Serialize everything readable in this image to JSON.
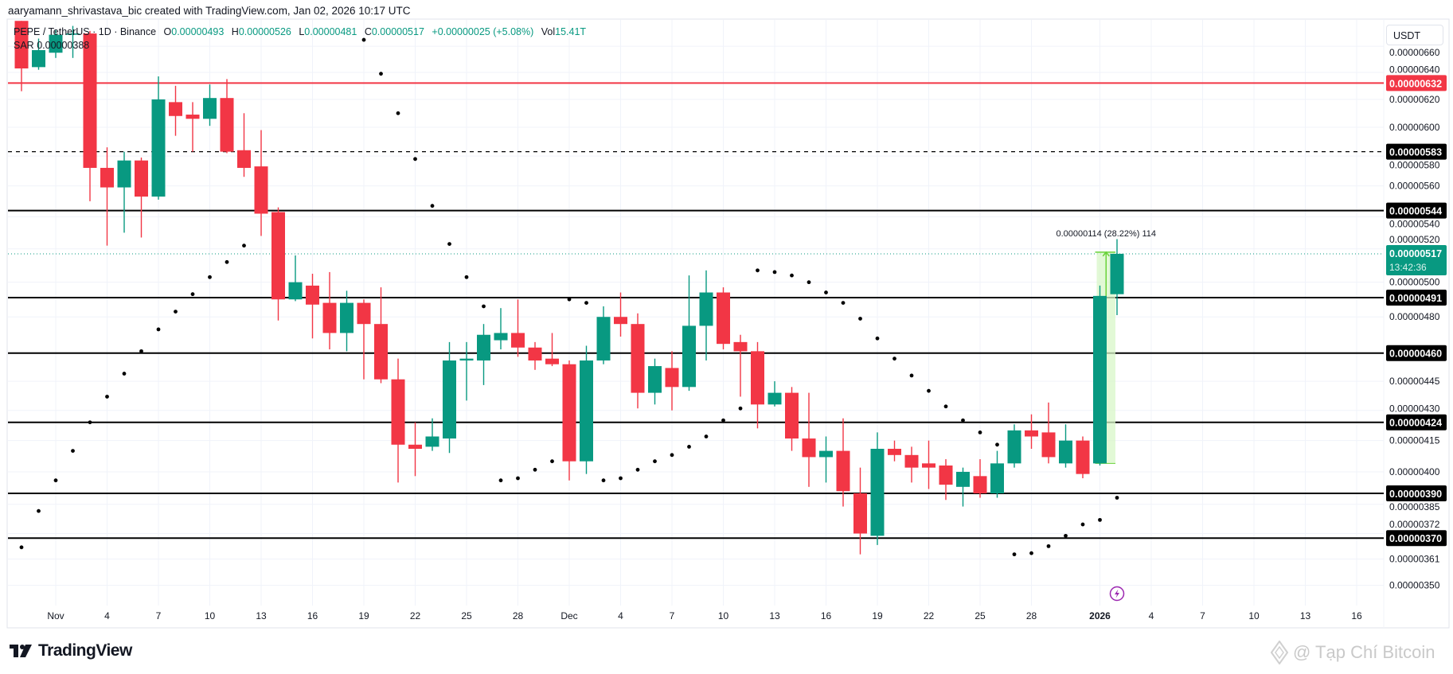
{
  "credit": "aaryamann_shrivastava_bic created with TradingView.com, Jan 02, 2026 10:17 UTC",
  "legend": {
    "symbol": "PEPE / TetherUS · 1D · Binance",
    "open_label": "O",
    "open": "0.00000493",
    "high_label": "H",
    "high": "0.00000526",
    "low_label": "L",
    "low": "0.00000481",
    "close_label": "C",
    "close": "0.00000517",
    "change": "+0.00000025 (+5.08%)",
    "volume_label": "Vol",
    "volume": "15.41T",
    "sar_label": "SAR",
    "sar_value": "0.00000388"
  },
  "currency": "USDT",
  "branding": {
    "logo": "TradingView",
    "watermark": "@ Tạp Chí Bitcoin"
  },
  "colors": {
    "up": "#089981",
    "down": "#f23645",
    "level": "#000000",
    "resistance": "#f23645",
    "sar": "#000000",
    "measure": "#6ad33a",
    "event": "#9c27b0"
  },
  "chart_data": {
    "type": "candlestick",
    "scale": "log",
    "ylim": [
      3.43e-06,
      6.85e-06
    ],
    "grid": true,
    "columns": [
      "date",
      "open",
      "high",
      "low",
      "close"
    ],
    "candles": [
      [
        "2025-10-30",
        6.8e-06,
        6.8e-06,
        6.26e-06,
        6.43e-06
      ],
      [
        "2025-10-31",
        6.44e-06,
        6.66e-06,
        6.42e-06,
        6.57e-06
      ],
      [
        "2025-11-01",
        6.55e-06,
        6.73e-06,
        6.51e-06,
        6.69e-06
      ],
      [
        "2025-11-02",
        6.69e-06,
        6.76e-06,
        6.51e-06,
        6.7e-06
      ],
      [
        "2025-11-03",
        6.7e-06,
        6.72e-06,
        5.5e-06,
        5.72e-06
      ],
      [
        "2025-11-04",
        5.72e-06,
        5.86e-06,
        5.22e-06,
        5.59e-06
      ],
      [
        "2025-11-05",
        5.59e-06,
        5.83e-06,
        5.3e-06,
        5.77e-06
      ],
      [
        "2025-11-06",
        5.77e-06,
        5.79e-06,
        5.27e-06,
        5.53e-06
      ],
      [
        "2025-11-07",
        5.53e-06,
        6.37e-06,
        5.51e-06,
        6.2e-06
      ],
      [
        "2025-11-08",
        6.18e-06,
        6.3e-06,
        5.94e-06,
        6.08e-06
      ],
      [
        "2025-11-09",
        6.09e-06,
        6.18e-06,
        5.83e-06,
        6.06e-06
      ],
      [
        "2025-11-10",
        6.06e-06,
        6.31e-06,
        6.01e-06,
        6.21e-06
      ],
      [
        "2025-11-11",
        6.21e-06,
        6.35e-06,
        5.82e-06,
        5.83e-06
      ],
      [
        "2025-11-12",
        5.84e-06,
        6.1e-06,
        5.66e-06,
        5.72e-06
      ],
      [
        "2025-11-13",
        5.73e-06,
        5.98e-06,
        5.28e-06,
        5.42e-06
      ],
      [
        "2025-11-14",
        5.43e-06,
        5.46e-06,
        4.78e-06,
        4.9e-06
      ],
      [
        "2025-11-15",
        4.9e-06,
        5.16e-06,
        4.89e-06,
        5e-06
      ],
      [
        "2025-11-16",
        4.98e-06,
        5.05e-06,
        4.68e-06,
        4.87e-06
      ],
      [
        "2025-11-17",
        4.88e-06,
        5.06e-06,
        4.62e-06,
        4.71e-06
      ],
      [
        "2025-11-18",
        4.71e-06,
        4.95e-06,
        4.61e-06,
        4.88e-06
      ],
      [
        "2025-11-19",
        4.88e-06,
        4.9e-06,
        4.46e-06,
        4.76e-06
      ],
      [
        "2025-11-20",
        4.76e-06,
        4.97e-06,
        4.44e-06,
        4.46e-06
      ],
      [
        "2025-11-21",
        4.46e-06,
        4.57e-06,
        3.95e-06,
        4.13e-06
      ],
      [
        "2025-11-22",
        4.13e-06,
        4.24e-06,
        3.98e-06,
        4.11e-06
      ],
      [
        "2025-11-23",
        4.12e-06,
        4.26e-06,
        4.1e-06,
        4.17e-06
      ],
      [
        "2025-11-24",
        4.16e-06,
        4.66e-06,
        4.09e-06,
        4.56e-06
      ],
      [
        "2025-11-25",
        4.56e-06,
        4.66e-06,
        4.35e-06,
        4.57e-06
      ],
      [
        "2025-11-26",
        4.56e-06,
        4.76e-06,
        4.43e-06,
        4.7e-06
      ],
      [
        "2025-11-27",
        4.67e-06,
        4.85e-06,
        4.62e-06,
        4.71e-06
      ],
      [
        "2025-11-28",
        4.71e-06,
        4.9e-06,
        4.58e-06,
        4.63e-06
      ],
      [
        "2025-11-29",
        4.63e-06,
        4.66e-06,
        4.51e-06,
        4.56e-06
      ],
      [
        "2025-11-30",
        4.57e-06,
        4.71e-06,
        4.53e-06,
        4.54e-06
      ],
      [
        "2025-12-01",
        4.54e-06,
        4.56e-06,
        3.96e-06,
        4.05e-06
      ],
      [
        "2025-12-02",
        4.05e-06,
        4.64e-06,
        3.99e-06,
        4.56e-06
      ],
      [
        "2025-12-03",
        4.56e-06,
        4.86e-06,
        4.54e-06,
        4.8e-06
      ],
      [
        "2025-12-04",
        4.8e-06,
        4.94e-06,
        4.69e-06,
        4.76e-06
      ],
      [
        "2025-12-05",
        4.76e-06,
        4.82e-06,
        4.31e-06,
        4.39e-06
      ],
      [
        "2025-12-06",
        4.39e-06,
        4.57e-06,
        4.33e-06,
        4.53e-06
      ],
      [
        "2025-12-07",
        4.52e-06,
        4.61e-06,
        4.3e-06,
        4.42e-06
      ],
      [
        "2025-12-08",
        4.42e-06,
        5.04e-06,
        4.4e-06,
        4.75e-06
      ],
      [
        "2025-12-09",
        4.75e-06,
        5.07e-06,
        4.56e-06,
        4.94e-06
      ],
      [
        "2025-12-10",
        4.94e-06,
        4.97e-06,
        4.62e-06,
        4.65e-06
      ],
      [
        "2025-12-11",
        4.66e-06,
        4.7e-06,
        4.37e-06,
        4.61e-06
      ],
      [
        "2025-12-12",
        4.61e-06,
        4.66e-06,
        4.21e-06,
        4.33e-06
      ],
      [
        "2025-12-13",
        4.33e-06,
        4.45e-06,
        4.32e-06,
        4.39e-06
      ],
      [
        "2025-12-14",
        4.39e-06,
        4.42e-06,
        4.1e-06,
        4.16e-06
      ],
      [
        "2025-12-15",
        4.16e-06,
        4.39e-06,
        3.93e-06,
        4.07e-06
      ],
      [
        "2025-12-16",
        4.07e-06,
        4.17e-06,
        3.95e-06,
        4.1e-06
      ],
      [
        "2025-12-17",
        4.1e-06,
        4.26e-06,
        3.84e-06,
        3.91e-06
      ],
      [
        "2025-12-18",
        3.9e-06,
        4.02e-06,
        3.63e-06,
        3.72e-06
      ],
      [
        "2025-12-19",
        3.71e-06,
        4.19e-06,
        3.67e-06,
        4.11e-06
      ],
      [
        "2025-12-20",
        4.11e-06,
        4.15e-06,
        4.05e-06,
        4.08e-06
      ],
      [
        "2025-12-21",
        4.08e-06,
        4.12e-06,
        3.95e-06,
        4.02e-06
      ],
      [
        "2025-12-22",
        4.04e-06,
        4.15e-06,
        3.92e-06,
        4.02e-06
      ],
      [
        "2025-12-23",
        4.03e-06,
        4.06e-06,
        3.87e-06,
        3.94e-06
      ],
      [
        "2025-12-24",
        3.93e-06,
        4.02e-06,
        3.84e-06,
        4e-06
      ],
      [
        "2025-12-25",
        3.98e-06,
        4.06e-06,
        3.88e-06,
        3.9e-06
      ],
      [
        "2025-12-26",
        3.9e-06,
        4.1e-06,
        3.88e-06,
        4.04e-06
      ],
      [
        "2025-12-27",
        4.04e-06,
        4.23e-06,
        4.02e-06,
        4.2e-06
      ],
      [
        "2025-12-28",
        4.2e-06,
        4.28e-06,
        4.11e-06,
        4.17e-06
      ],
      [
        "2025-12-29",
        4.19e-06,
        4.34e-06,
        4.04e-06,
        4.07e-06
      ],
      [
        "2025-12-30",
        4.04e-06,
        4.23e-06,
        4.02e-06,
        4.15e-06
      ],
      [
        "2025-12-31",
        4.15e-06,
        4.17e-06,
        3.97e-06,
        3.99e-06
      ],
      [
        "2026-01-01",
        4.04e-06,
        4.98e-06,
        4.03e-06,
        4.92e-06
      ],
      [
        "2026-01-02",
        4.93e-06,
        5.26e-06,
        4.81e-06,
        5.17e-06
      ]
    ],
    "sar": [
      [
        "2025-10-30",
        3.66e-06
      ],
      [
        "2025-10-31",
        3.82e-06
      ],
      [
        "2025-11-01",
        3.96e-06
      ],
      [
        "2025-11-02",
        4.1e-06
      ],
      [
        "2025-11-03",
        4.24e-06
      ],
      [
        "2025-11-04",
        4.37e-06
      ],
      [
        "2025-11-05",
        4.49e-06
      ],
      [
        "2025-11-06",
        4.61e-06
      ],
      [
        "2025-11-07",
        4.73e-06
      ],
      [
        "2025-11-08",
        4.83e-06
      ],
      [
        "2025-11-09",
        4.93e-06
      ],
      [
        "2025-11-10",
        5.03e-06
      ],
      [
        "2025-11-11",
        5.12e-06
      ],
      [
        "2025-11-12",
        5.22e-06
      ],
      [
        "2025-11-19",
        6.65e-06
      ],
      [
        "2025-11-20",
        6.39e-06
      ],
      [
        "2025-11-21",
        6.1e-06
      ],
      [
        "2025-11-22",
        5.78e-06
      ],
      [
        "2025-11-23",
        5.47e-06
      ],
      [
        "2025-11-24",
        5.23e-06
      ],
      [
        "2025-11-25",
        5.03e-06
      ],
      [
        "2025-11-26",
        4.86e-06
      ],
      [
        "2025-11-27",
        3.96e-06
      ],
      [
        "2025-11-28",
        3.97e-06
      ],
      [
        "2025-11-29",
        4.01e-06
      ],
      [
        "2025-11-30",
        4.05e-06
      ],
      [
        "2025-12-01",
        4.9e-06
      ],
      [
        "2025-12-02",
        4.88e-06
      ],
      [
        "2025-12-03",
        3.96e-06
      ],
      [
        "2025-12-04",
        3.97e-06
      ],
      [
        "2025-12-05",
        4.01e-06
      ],
      [
        "2025-12-06",
        4.05e-06
      ],
      [
        "2025-12-07",
        4.08e-06
      ],
      [
        "2025-12-08",
        4.12e-06
      ],
      [
        "2025-12-09",
        4.17e-06
      ],
      [
        "2025-12-10",
        4.25e-06
      ],
      [
        "2025-12-11",
        4.31e-06
      ],
      [
        "2025-12-12",
        5.07e-06
      ],
      [
        "2025-12-13",
        5.06e-06
      ],
      [
        "2025-12-14",
        5.04e-06
      ],
      [
        "2025-12-15",
        5e-06
      ],
      [
        "2025-12-16",
        4.94e-06
      ],
      [
        "2025-12-17",
        4.88e-06
      ],
      [
        "2025-12-18",
        4.79e-06
      ],
      [
        "2025-12-19",
        4.68e-06
      ],
      [
        "2025-12-20",
        4.57e-06
      ],
      [
        "2025-12-21",
        4.48e-06
      ],
      [
        "2025-12-22",
        4.4e-06
      ],
      [
        "2025-12-23",
        4.32e-06
      ],
      [
        "2025-12-24",
        4.25e-06
      ],
      [
        "2025-12-25",
        4.19e-06
      ],
      [
        "2025-12-26",
        4.13e-06
      ],
      [
        "2025-12-27",
        3.63e-06
      ],
      [
        "2025-12-28",
        3.635e-06
      ],
      [
        "2025-12-29",
        3.665e-06
      ],
      [
        "2025-12-30",
        3.71e-06
      ],
      [
        "2025-12-31",
        3.76e-06
      ],
      [
        "2026-01-01",
        3.78e-06
      ],
      [
        "2026-01-02",
        3.88e-06
      ]
    ],
    "price_ticks": [
      "0.00000660",
      "0.00000640",
      "0.00000620",
      "0.00000600",
      "0.00000580",
      "0.00000560",
      "0.00000540",
      "0.00000520",
      "0.00000500",
      "0.00000480",
      "0.00000445",
      "0.00000430",
      "0.00000415",
      "0.00000400",
      "0.00000385",
      "0.00000372",
      "0.00000361",
      "0.00000350"
    ],
    "x_ticks": [
      {
        "label": "Nov",
        "date": "2025-11-01"
      },
      {
        "label": "4",
        "date": "2025-11-04"
      },
      {
        "label": "7",
        "date": "2025-11-07"
      },
      {
        "label": "10",
        "date": "2025-11-10"
      },
      {
        "label": "13",
        "date": "2025-11-13"
      },
      {
        "label": "16",
        "date": "2025-11-16"
      },
      {
        "label": "19",
        "date": "2025-11-19"
      },
      {
        "label": "22",
        "date": "2025-11-22"
      },
      {
        "label": "25",
        "date": "2025-11-25"
      },
      {
        "label": "28",
        "date": "2025-11-28"
      },
      {
        "label": "Dec",
        "date": "2025-12-01"
      },
      {
        "label": "4",
        "date": "2025-12-04"
      },
      {
        "label": "7",
        "date": "2025-12-07"
      },
      {
        "label": "10",
        "date": "2025-12-10"
      },
      {
        "label": "13",
        "date": "2025-12-13"
      },
      {
        "label": "16",
        "date": "2025-12-16"
      },
      {
        "label": "19",
        "date": "2025-12-19"
      },
      {
        "label": "22",
        "date": "2025-12-22"
      },
      {
        "label": "25",
        "date": "2025-12-25"
      },
      {
        "label": "28",
        "date": "2025-12-28"
      },
      {
        "label": "2026",
        "date": "2026-01-01",
        "bold": true
      },
      {
        "label": "4",
        "date": "2026-01-04"
      },
      {
        "label": "7",
        "date": "2026-01-07"
      },
      {
        "label": "10",
        "date": "2026-01-10"
      },
      {
        "label": "13",
        "date": "2026-01-13"
      },
      {
        "label": "16",
        "date": "2026-01-16"
      }
    ],
    "levels": [
      {
        "label": "0.00000632",
        "color": "#f23645",
        "style": "solid"
      },
      {
        "label": "0.00000583",
        "color": "#000000",
        "style": "dashed"
      },
      {
        "label": "0.00000544",
        "color": "#000000",
        "style": "solid"
      },
      {
        "label": "0.00000491",
        "color": "#000000",
        "style": "solid"
      },
      {
        "label": "0.00000460",
        "color": "#000000",
        "style": "solid"
      },
      {
        "label": "0.00000424",
        "color": "#000000",
        "style": "solid"
      },
      {
        "label": "0.00000390",
        "color": "#000000",
        "style": "solid"
      },
      {
        "label": "0.00000370",
        "color": "#000000",
        "style": "solid"
      }
    ],
    "last_price": {
      "label": "0.00000517",
      "countdown": "13:42:36"
    },
    "measure": {
      "label": "0.00000114 (28.22%) 114",
      "from": 4.04e-06,
      "to": 5.18e-06,
      "start_date": "2026-01-01",
      "end_date": "2026-01-02"
    },
    "event": {
      "icon": "lightning-icon",
      "date": "2026-01-02"
    }
  }
}
